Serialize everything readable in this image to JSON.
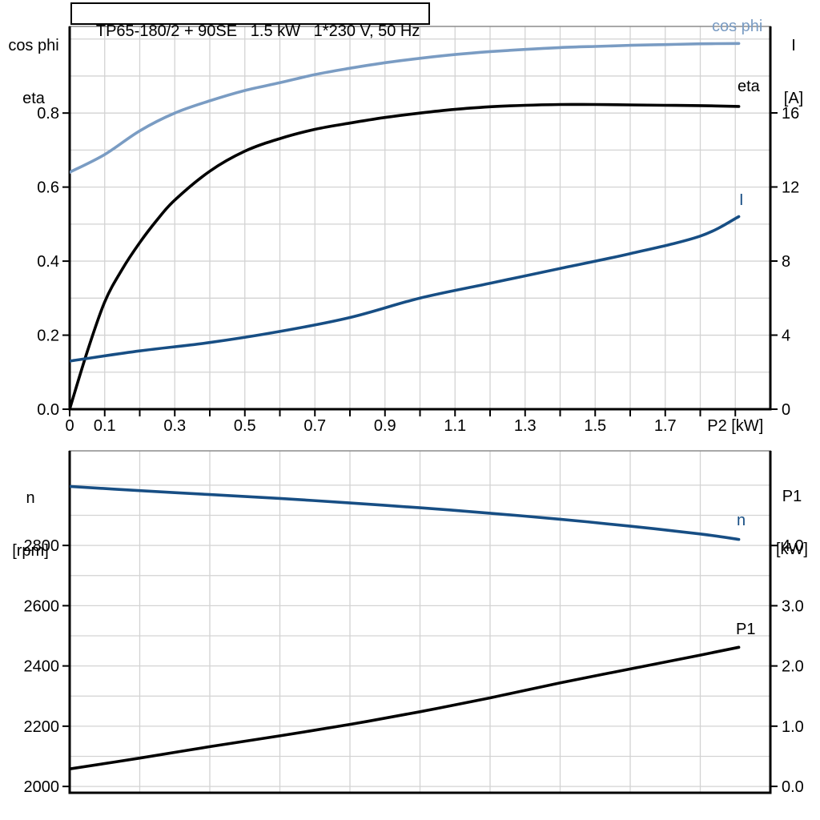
{
  "page": {
    "background": "#ffffff"
  },
  "title_box": {
    "text": "TP65-180/2 + 90SE   1.5 kW   1*230 V, 50 Hz"
  },
  "axis_headers": {
    "top_left": [
      "cos phi",
      "eta"
    ],
    "top_right": [
      "I",
      "[A]"
    ],
    "bottom_left": [
      "n",
      "[rpm]"
    ],
    "bottom_right": [
      "P1",
      "[kW]"
    ]
  },
  "colors": {
    "cos_phi_curve": "#7a9cc3",
    "dark_blue_curve": "#174e84",
    "black_curve": "#000000",
    "gridline": "#d3d3d3",
    "frame_top": "#8c8c8c",
    "axis": "#000000"
  },
  "chart_data": [
    {
      "id": "top",
      "type": "line",
      "title": "TP65-180/2 + 90SE   1.5 kW   1*230 V, 50 Hz",
      "x": {
        "label": "P2 [kW]",
        "label_at": 1.9,
        "range": [
          0,
          2.0
        ],
        "grid": [
          0.1,
          0.2,
          0.3,
          0.4,
          0.5,
          0.6,
          0.7,
          0.8,
          0.9,
          1.0,
          1.1,
          1.2,
          1.3,
          1.4,
          1.5,
          1.6,
          1.7,
          1.8,
          1.9
        ],
        "ticks": [
          {
            "v": 0,
            "label": "0"
          },
          {
            "v": 0.1,
            "label": "0.1"
          },
          {
            "v": 0.2,
            "label": ""
          },
          {
            "v": 0.3,
            "label": "0.3"
          },
          {
            "v": 0.4,
            "label": ""
          },
          {
            "v": 0.5,
            "label": "0.5"
          },
          {
            "v": 0.6,
            "label": ""
          },
          {
            "v": 0.7,
            "label": "0.7"
          },
          {
            "v": 0.8,
            "label": ""
          },
          {
            "v": 0.9,
            "label": "0.9"
          },
          {
            "v": 1.0,
            "label": ""
          },
          {
            "v": 1.1,
            "label": "1.1"
          },
          {
            "v": 1.2,
            "label": ""
          },
          {
            "v": 1.3,
            "label": "1.3"
          },
          {
            "v": 1.4,
            "label": ""
          },
          {
            "v": 1.5,
            "label": "1.5"
          },
          {
            "v": 1.6,
            "label": ""
          },
          {
            "v": 1.7,
            "label": "1.7"
          },
          {
            "v": 1.8,
            "label": ""
          },
          {
            "v": 1.9,
            "label": ""
          }
        ]
      },
      "y_left": {
        "label": "cos phi / eta",
        "range": [
          0,
          1.034
        ],
        "grid": [
          0.1,
          0.2,
          0.3,
          0.4,
          0.5,
          0.6,
          0.7,
          0.8,
          0.9,
          1.0
        ],
        "ticks": [
          {
            "v": 0.0,
            "label": "0.0"
          },
          {
            "v": 0.2,
            "label": "0.2"
          },
          {
            "v": 0.4,
            "label": "0.4"
          },
          {
            "v": 0.6,
            "label": "0.6"
          },
          {
            "v": 0.8,
            "label": "0.8"
          }
        ]
      },
      "y_right": {
        "label": "I [A]",
        "range": [
          0,
          20.67
        ],
        "ticks": [
          {
            "v": 0,
            "label": "0"
          },
          {
            "v": 4,
            "label": "4"
          },
          {
            "v": 8,
            "label": "8"
          },
          {
            "v": 12,
            "label": "12"
          },
          {
            "v": 16,
            "label": "16"
          }
        ]
      },
      "series": [
        {
          "id": "cos-phi",
          "label": "cos phi",
          "axis": "left",
          "color": "#7a9cc3",
          "points": [
            [
              0,
              0.64
            ],
            [
              0.1,
              0.688
            ],
            [
              0.2,
              0.752
            ],
            [
              0.3,
              0.8
            ],
            [
              0.4,
              0.833
            ],
            [
              0.5,
              0.861
            ],
            [
              0.6,
              0.882
            ],
            [
              0.7,
              0.904
            ],
            [
              0.8,
              0.921
            ],
            [
              0.9,
              0.936
            ],
            [
              1.0,
              0.948
            ],
            [
              1.1,
              0.958
            ],
            [
              1.2,
              0.966
            ],
            [
              1.3,
              0.972
            ],
            [
              1.4,
              0.977
            ],
            [
              1.5,
              0.98
            ],
            [
              1.6,
              0.983
            ],
            [
              1.7,
              0.985
            ],
            [
              1.8,
              0.987
            ],
            [
              1.91,
              0.988
            ]
          ]
        },
        {
          "id": "eta",
          "label": "eta",
          "axis": "left",
          "color": "#000000",
          "points": [
            [
              0,
              0.0
            ],
            [
              0.05,
              0.155
            ],
            [
              0.1,
              0.29
            ],
            [
              0.15,
              0.378
            ],
            [
              0.2,
              0.45
            ],
            [
              0.25,
              0.512
            ],
            [
              0.3,
              0.565
            ],
            [
              0.4,
              0.643
            ],
            [
              0.5,
              0.697
            ],
            [
              0.6,
              0.731
            ],
            [
              0.7,
              0.756
            ],
            [
              0.8,
              0.773
            ],
            [
              0.9,
              0.788
            ],
            [
              1.0,
              0.8
            ],
            [
              1.1,
              0.81
            ],
            [
              1.2,
              0.817
            ],
            [
              1.3,
              0.821
            ],
            [
              1.4,
              0.823
            ],
            [
              1.5,
              0.823
            ],
            [
              1.6,
              0.822
            ],
            [
              1.7,
              0.821
            ],
            [
              1.8,
              0.82
            ],
            [
              1.91,
              0.818
            ]
          ]
        },
        {
          "id": "current",
          "label": "I",
          "axis": "right",
          "color": "#174e84",
          "points": [
            [
              0,
              2.6
            ],
            [
              0.2,
              3.15
            ],
            [
              0.4,
              3.6
            ],
            [
              0.6,
              4.2
            ],
            [
              0.8,
              4.95
            ],
            [
              1.0,
              6.0
            ],
            [
              1.2,
              6.8
            ],
            [
              1.4,
              7.6
            ],
            [
              1.6,
              8.4
            ],
            [
              1.8,
              9.35
            ],
            [
              1.91,
              10.4
            ]
          ]
        }
      ]
    },
    {
      "id": "bottom",
      "type": "line",
      "title": "",
      "x": {
        "label": "",
        "label_at": null,
        "range": [
          0,
          2.0
        ],
        "grid": [
          0.2,
          0.4,
          0.6,
          0.8,
          1.0,
          1.2,
          1.4,
          1.6,
          1.8
        ],
        "ticks": []
      },
      "y_left": {
        "label": "n [rpm]",
        "range": [
          1979,
          3114
        ],
        "grid": [
          2000,
          2100,
          2200,
          2300,
          2400,
          2500,
          2600,
          2700,
          2800,
          2900,
          3000
        ],
        "ticks": [
          {
            "v": 2000,
            "label": "2000"
          },
          {
            "v": 2200,
            "label": "2200"
          },
          {
            "v": 2400,
            "label": "2400"
          },
          {
            "v": 2600,
            "label": "2600"
          },
          {
            "v": 2800,
            "label": "2800"
          }
        ]
      },
      "y_right": {
        "label": "P1 [kW]",
        "range": [
          -0.106,
          5.572
        ],
        "ticks": [
          {
            "v": 0,
            "label": "0.0"
          },
          {
            "v": 1,
            "label": "1.0"
          },
          {
            "v": 2,
            "label": "2.0"
          },
          {
            "v": 3,
            "label": "3.0"
          },
          {
            "v": 4,
            "label": "4.0"
          }
        ]
      },
      "series": [
        {
          "id": "speed",
          "label": "n",
          "axis": "left",
          "color": "#174e84",
          "points": [
            [
              0,
              2996
            ],
            [
              0.2,
              2982
            ],
            [
              0.4,
              2969
            ],
            [
              0.6,
              2956
            ],
            [
              0.8,
              2941
            ],
            [
              1.0,
              2925
            ],
            [
              1.2,
              2907
            ],
            [
              1.4,
              2887
            ],
            [
              1.6,
              2864
            ],
            [
              1.8,
              2838
            ],
            [
              1.91,
              2820
            ]
          ]
        },
        {
          "id": "power",
          "label": "P1",
          "axis": "right",
          "color": "#000000",
          "points": [
            [
              0,
              0.29
            ],
            [
              0.2,
              0.47
            ],
            [
              0.4,
              0.66
            ],
            [
              0.6,
              0.84
            ],
            [
              0.8,
              1.03
            ],
            [
              1.0,
              1.24
            ],
            [
              1.2,
              1.47
            ],
            [
              1.4,
              1.72
            ],
            [
              1.6,
              1.95
            ],
            [
              1.8,
              2.18
            ],
            [
              1.91,
              2.31
            ]
          ]
        }
      ]
    }
  ]
}
